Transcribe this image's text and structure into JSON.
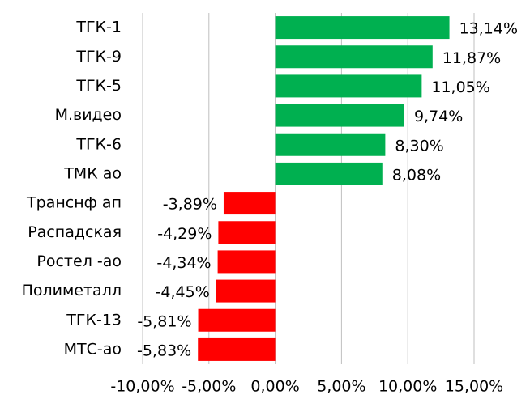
{
  "chart_data": {
    "type": "barh",
    "categories": [
      "ТГК-1",
      "ТГК-9",
      "ТГК-5",
      "М.видео",
      "ТГК-6",
      "ТМК ао",
      "Транснф ап",
      "Распадская",
      "Ростел -ао",
      "Полиметалл",
      "ТГК-13",
      "МТС-ао"
    ],
    "values": [
      13.14,
      11.87,
      11.05,
      9.74,
      8.3,
      8.08,
      -3.89,
      -4.29,
      -4.34,
      -4.45,
      -5.81,
      -5.83
    ],
    "value_labels": [
      "13,14%",
      "11,87%",
      "11,05%",
      "9,74%",
      "8,30%",
      "8,08%",
      "-3,89%",
      "-4,29%",
      "-4,34%",
      "-4,45%",
      "-5,81%",
      "-5,83%"
    ],
    "colors": [
      "#00b050",
      "#00b050",
      "#00b050",
      "#00b050",
      "#00b050",
      "#00b050",
      "#ff0000",
      "#ff0000",
      "#ff0000",
      "#ff0000",
      "#ff0000",
      "#ff0000"
    ],
    "xlim": [
      -10,
      15
    ],
    "xticks": [
      {
        "value": -10,
        "label": "-10,00%"
      },
      {
        "value": -5,
        "label": "-5,00%"
      },
      {
        "value": 0,
        "label": "0,00%"
      },
      {
        "value": 5,
        "label": "5,00%"
      },
      {
        "value": 10,
        "label": "10,00%"
      },
      {
        "value": 15,
        "label": "15,00%"
      }
    ],
    "grid": true
  }
}
